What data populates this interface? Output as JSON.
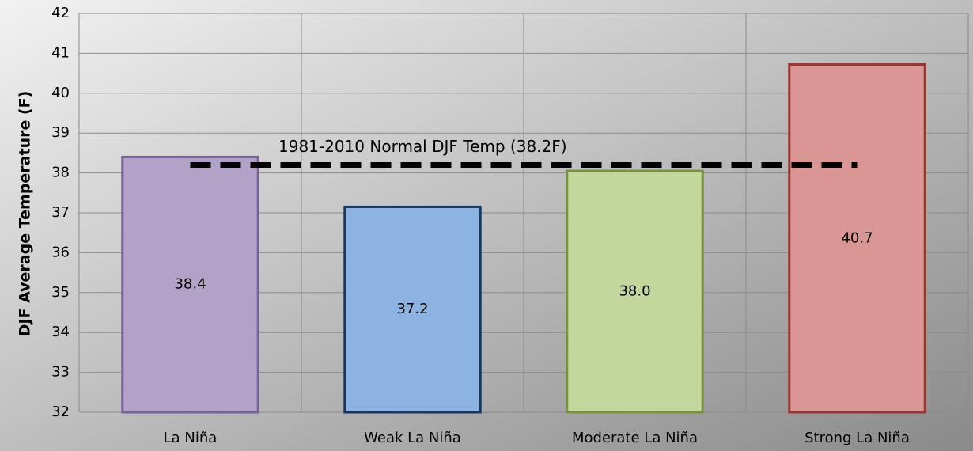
{
  "chart_data": {
    "type": "bar",
    "y_label": "DJF Average Temperature (F)",
    "categories": [
      "La Niña",
      "Weak La Niña",
      "Moderate La Niña",
      "Strong La Niña"
    ],
    "values": [
      38.4,
      37.15,
      38.05,
      40.72
    ],
    "value_labels": [
      "38.4",
      "37.2",
      "38.0",
      "40.7"
    ],
    "colors": [
      "#b3a2c7",
      "#8db3e2",
      "#c3d69b",
      "#d99694"
    ],
    "border_colors": [
      "#7a609a",
      "#17375e",
      "#77933c",
      "#953735"
    ],
    "reference": {
      "value": 38.2,
      "label": "1981-2010 Normal DJF Temp  (38.2F)"
    },
    "ylim": [
      32,
      42
    ],
    "yticks": [
      32,
      33,
      34,
      35,
      36,
      37,
      38,
      39,
      40,
      41,
      42
    ],
    "grid": true
  }
}
